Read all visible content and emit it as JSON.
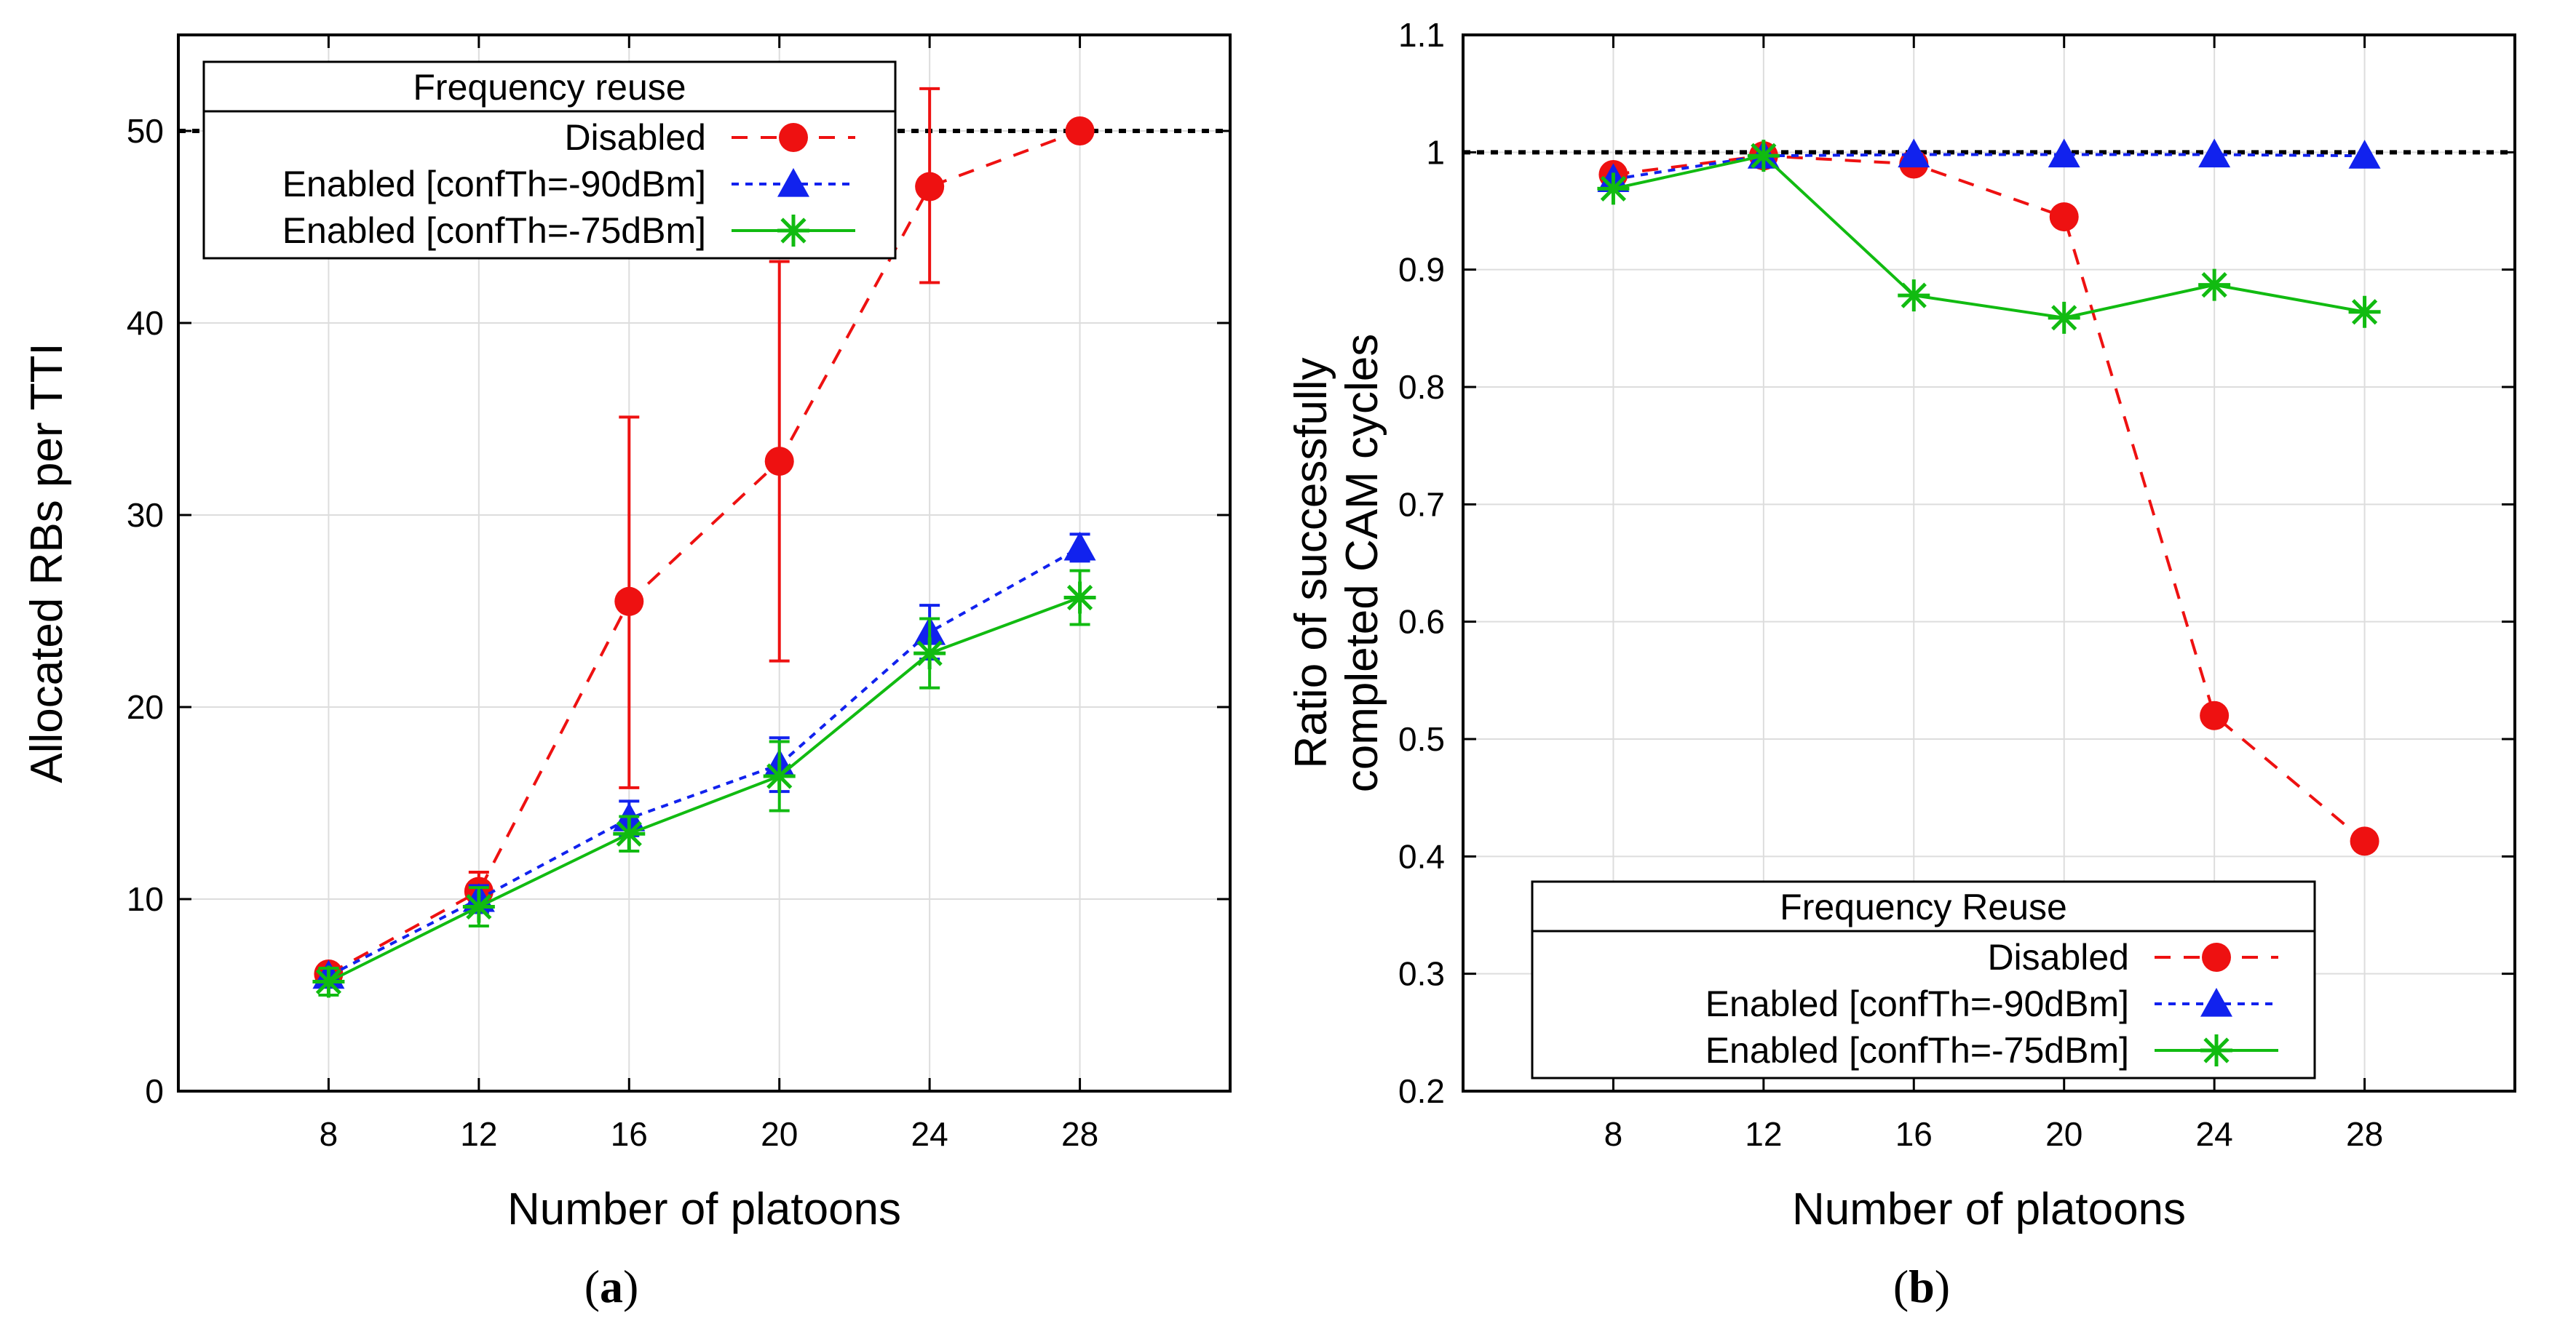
{
  "colors": {
    "disabled": "#ee1111",
    "enabled_90": "#1122ee",
    "enabled_75": "#11bb11",
    "reference": "#000000",
    "grid": "#dddddd"
  },
  "series_styles": [
    {
      "name": "Disabled",
      "marker": "circle",
      "line": "dashed"
    },
    {
      "name": "Enabled [confTh=-90dBm]",
      "marker": "triangle",
      "line": "dotted"
    },
    {
      "name": "Enabled [confTh=-75dBm]",
      "marker": "asterisk",
      "line": "solid"
    }
  ],
  "chart_data": [
    {
      "type": "line",
      "panel_label": "a",
      "title": "",
      "xlabel": "Number of platoons",
      "ylabel": "Allocated RBs per TTI",
      "xlim": [
        4,
        32
      ],
      "ylim": [
        0,
        55
      ],
      "xticks": [
        8,
        12,
        16,
        20,
        24,
        28
      ],
      "yticks": [
        0,
        10,
        20,
        30,
        40,
        50
      ],
      "ytick_labels": [
        "0",
        "10",
        "20",
        "30",
        "40",
        "50"
      ],
      "reference_line": 50,
      "legend_title": "Frequency reuse",
      "legend_position": "top-left",
      "x": [
        8,
        12,
        16,
        20,
        24,
        28
      ],
      "series": [
        {
          "name": "Disabled",
          "values": [
            6.1,
            10.4,
            25.5,
            32.8,
            47.1,
            50.0
          ],
          "err_low": [
            5.8,
            9.4,
            15.8,
            22.4,
            42.1,
            50.0
          ],
          "err_high": [
            6.4,
            11.4,
            35.1,
            43.2,
            52.2,
            50.0
          ]
        },
        {
          "name": "Enabled [confTh=-90dBm]",
          "values": [
            6.0,
            10.0,
            14.2,
            17.0,
            23.9,
            28.3
          ],
          "err_low": [
            5.6,
            9.3,
            13.3,
            15.6,
            22.5,
            27.6
          ],
          "err_high": [
            6.4,
            10.7,
            15.1,
            18.4,
            25.3,
            29.0
          ]
        },
        {
          "name": "Enabled [confTh=-75dBm]",
          "values": [
            5.7,
            9.6,
            13.4,
            16.4,
            22.8,
            25.7
          ],
          "err_low": [
            5.0,
            8.6,
            12.5,
            14.6,
            21.0,
            24.3
          ],
          "err_high": [
            6.4,
            10.6,
            14.3,
            18.2,
            24.6,
            27.1
          ]
        }
      ]
    },
    {
      "type": "line",
      "panel_label": "b",
      "title": "",
      "xlabel": "Number of platoons",
      "ylabel": "Ratio of successfully completed CAM cycles",
      "ylabel_lines": [
        "Ratio of successfully",
        "completed CAM cycles"
      ],
      "xlim": [
        4,
        32
      ],
      "ylim": [
        0.2,
        1.1
      ],
      "xticks": [
        8,
        12,
        16,
        20,
        24,
        28
      ],
      "yticks": [
        0.2,
        0.3,
        0.4,
        0.5,
        0.6,
        0.7,
        0.8,
        0.9,
        1.0,
        1.1
      ],
      "ytick_labels": [
        "0.2",
        "0.3",
        "0.4",
        "0.5",
        "0.6",
        "0.7",
        "0.8",
        "0.9",
        "1",
        "1.1"
      ],
      "reference_line": 1.0,
      "legend_title": "Frequency Reuse",
      "legend_position": "bottom-left",
      "x": [
        8,
        12,
        16,
        20,
        24,
        28
      ],
      "series": [
        {
          "name": "Disabled",
          "values": [
            0.981,
            0.997,
            0.99,
            0.945,
            0.52,
            0.413
          ]
        },
        {
          "name": "Enabled [confTh=-90dBm]",
          "values": [
            0.977,
            0.997,
            0.998,
            0.998,
            0.998,
            0.997
          ]
        },
        {
          "name": "Enabled [confTh=-75dBm]",
          "values": [
            0.969,
            0.997,
            0.878,
            0.859,
            0.887,
            0.864
          ]
        }
      ]
    }
  ]
}
